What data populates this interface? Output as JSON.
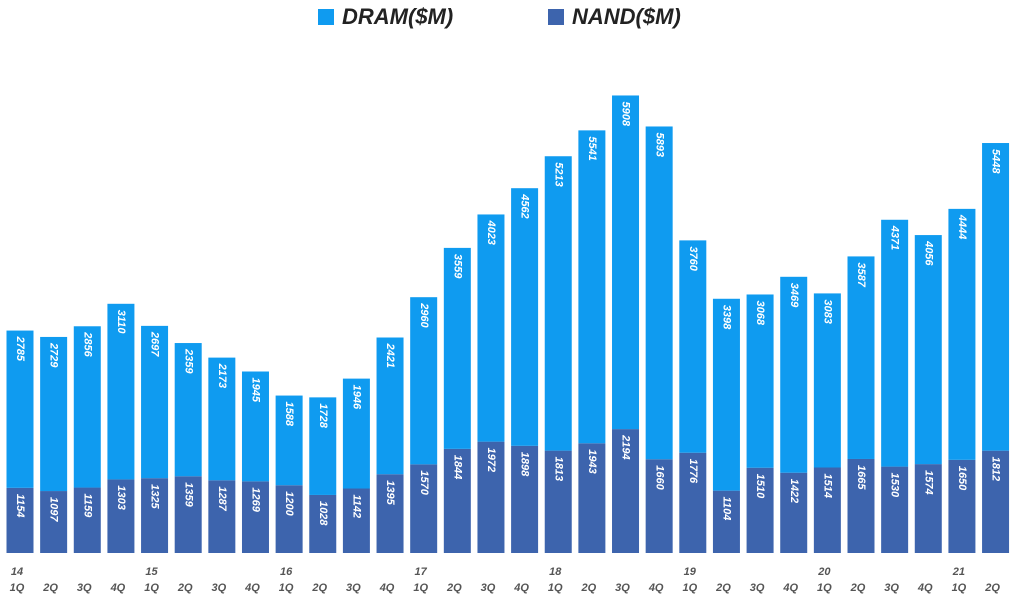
{
  "chart_data": {
    "type": "stacked_bar",
    "categories": [
      [
        "14",
        "1Q"
      ],
      [
        "2Q"
      ],
      [
        "3Q"
      ],
      [
        "4Q"
      ],
      [
        "15",
        "1Q"
      ],
      [
        "2Q"
      ],
      [
        "3Q"
      ],
      [
        "4Q"
      ],
      [
        "16",
        "1Q"
      ],
      [
        "2Q"
      ],
      [
        "3Q"
      ],
      [
        "4Q"
      ],
      [
        "17",
        "1Q"
      ],
      [
        "2Q"
      ],
      [
        "3Q"
      ],
      [
        "4Q"
      ],
      [
        "18",
        "1Q"
      ],
      [
        "2Q"
      ],
      [
        "3Q"
      ],
      [
        "4Q"
      ],
      [
        "19",
        "1Q"
      ],
      [
        "2Q"
      ],
      [
        "3Q"
      ],
      [
        "4Q"
      ],
      [
        "20",
        "1Q"
      ],
      [
        "2Q"
      ],
      [
        "3Q"
      ],
      [
        "4Q"
      ],
      [
        "21",
        "1Q"
      ],
      [
        "2Q"
      ]
    ],
    "series": [
      {
        "name": "NAND($M)",
        "color": "#3d64ad",
        "values": [
          1154,
          1097,
          1159,
          1303,
          1325,
          1359,
          1287,
          1269,
          1200,
          1028,
          1142,
          1395,
          1570,
          1844,
          1972,
          1898,
          1813,
          1943,
          2194,
          1660,
          1776,
          1104,
          1510,
          1422,
          1514,
          1665,
          1530,
          1574,
          1650,
          1812
        ]
      },
      {
        "name": "DRAM($M)",
        "color": "#0f9bf0",
        "values": [
          2785,
          2729,
          2856,
          3110,
          2697,
          2359,
          2173,
          1945,
          1588,
          1728,
          1946,
          2421,
          2960,
          3559,
          4023,
          4562,
          5213,
          5541,
          5908,
          5893,
          3760,
          3398,
          3068,
          3469,
          3083,
          3587,
          4371,
          4056,
          4444,
          5448
        ]
      }
    ],
    "legend_order": [
      1,
      0
    ],
    "ylim": [
      0,
      8500
    ]
  }
}
